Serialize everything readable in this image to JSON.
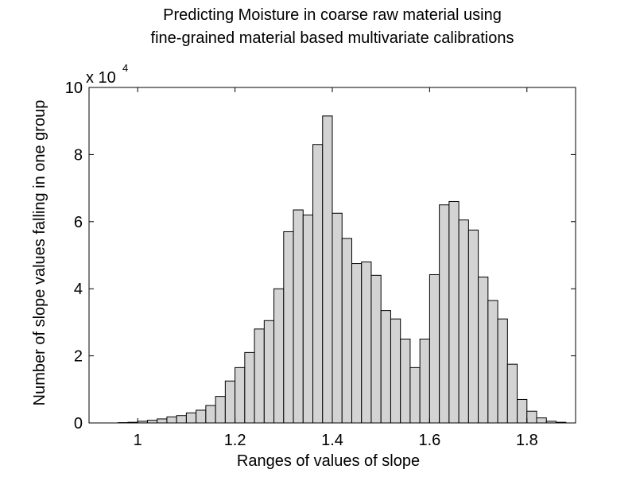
{
  "chart_data": {
    "type": "bar",
    "title": "Predicting Moisture in coarse raw material using",
    "subtitle": "fine-grained material based multivariate calibrations",
    "xlabel": "Ranges of values of slope",
    "ylabel": "Number of slope values falling in one group",
    "y_multiplier_base": "x 10",
    "y_multiplier_exp": "4",
    "xlim": [
      0.9,
      1.9
    ],
    "ylim": [
      0,
      10
    ],
    "bin_width": 0.02,
    "xticks": [
      {
        "value": 1.0,
        "label": "1"
      },
      {
        "value": 1.2,
        "label": "1.2"
      },
      {
        "value": 1.4,
        "label": "1.4"
      },
      {
        "value": 1.6,
        "label": "1.6"
      },
      {
        "value": 1.8,
        "label": "1.8"
      }
    ],
    "yticks": [
      {
        "value": 0,
        "label": "0"
      },
      {
        "value": 2,
        "label": "2"
      },
      {
        "value": 4,
        "label": "4"
      },
      {
        "value": 6,
        "label": "6"
      },
      {
        "value": 8,
        "label": "8"
      },
      {
        "value": 10,
        "label": "10"
      }
    ],
    "bar_color": "#d3d3d3",
    "edge_color": "#000000",
    "bins": [
      {
        "x": 0.97,
        "y": 0.01
      },
      {
        "x": 0.99,
        "y": 0.02
      },
      {
        "x": 1.01,
        "y": 0.05
      },
      {
        "x": 1.03,
        "y": 0.08
      },
      {
        "x": 1.05,
        "y": 0.12
      },
      {
        "x": 1.07,
        "y": 0.18
      },
      {
        "x": 1.09,
        "y": 0.22
      },
      {
        "x": 1.11,
        "y": 0.3
      },
      {
        "x": 1.13,
        "y": 0.38
      },
      {
        "x": 1.15,
        "y": 0.52
      },
      {
        "x": 1.17,
        "y": 0.79
      },
      {
        "x": 1.19,
        "y": 1.25
      },
      {
        "x": 1.21,
        "y": 1.65
      },
      {
        "x": 1.23,
        "y": 2.1
      },
      {
        "x": 1.25,
        "y": 2.8
      },
      {
        "x": 1.27,
        "y": 3.05
      },
      {
        "x": 1.29,
        "y": 4.0
      },
      {
        "x": 1.31,
        "y": 5.7
      },
      {
        "x": 1.33,
        "y": 6.35
      },
      {
        "x": 1.35,
        "y": 6.2
      },
      {
        "x": 1.37,
        "y": 8.3
      },
      {
        "x": 1.39,
        "y": 9.15
      },
      {
        "x": 1.41,
        "y": 6.25
      },
      {
        "x": 1.43,
        "y": 5.5
      },
      {
        "x": 1.45,
        "y": 4.75
      },
      {
        "x": 1.47,
        "y": 4.8
      },
      {
        "x": 1.49,
        "y": 4.4
      },
      {
        "x": 1.51,
        "y": 3.35
      },
      {
        "x": 1.53,
        "y": 3.1
      },
      {
        "x": 1.55,
        "y": 2.5
      },
      {
        "x": 1.57,
        "y": 1.65
      },
      {
        "x": 1.59,
        "y": 2.5
      },
      {
        "x": 1.61,
        "y": 4.42
      },
      {
        "x": 1.63,
        "y": 6.5
      },
      {
        "x": 1.65,
        "y": 6.6
      },
      {
        "x": 1.67,
        "y": 6.05
      },
      {
        "x": 1.69,
        "y": 5.75
      },
      {
        "x": 1.71,
        "y": 4.35
      },
      {
        "x": 1.73,
        "y": 3.65
      },
      {
        "x": 1.75,
        "y": 3.1
      },
      {
        "x": 1.77,
        "y": 1.75
      },
      {
        "x": 1.79,
        "y": 0.7
      },
      {
        "x": 1.81,
        "y": 0.35
      },
      {
        "x": 1.83,
        "y": 0.15
      },
      {
        "x": 1.85,
        "y": 0.05
      },
      {
        "x": 1.87,
        "y": 0.02
      }
    ]
  }
}
